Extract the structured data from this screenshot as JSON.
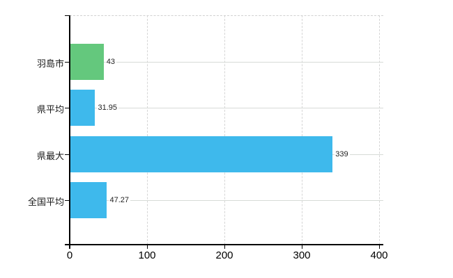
{
  "chart_data": {
    "type": "bar",
    "orientation": "horizontal",
    "title": "",
    "categories": [
      "羽島市",
      "県平均",
      "県最大",
      "全国平均"
    ],
    "values": [
      43,
      31.95,
      339,
      47.27
    ],
    "value_labels": [
      "43",
      "31.95",
      "339",
      "47.27"
    ],
    "bar_colors": [
      "#64c87d",
      "#3eb9ec",
      "#3eb9ec",
      "#3eb9ec"
    ],
    "x_ticks": [
      0,
      100,
      200,
      300,
      400
    ],
    "x_tick_labels": [
      "0",
      "100",
      "200",
      "300",
      "400"
    ],
    "xlim": [
      0,
      400
    ],
    "legend": {
      "visible": false
    },
    "grid": {
      "vertical_style": "dashed",
      "horizontal_category_style": "solid",
      "color": "#d5d5d5"
    },
    "colors": {
      "axis": "#000000",
      "label": "#1a1a1a",
      "value_label": "#222222",
      "background": "#ffffff"
    }
  }
}
